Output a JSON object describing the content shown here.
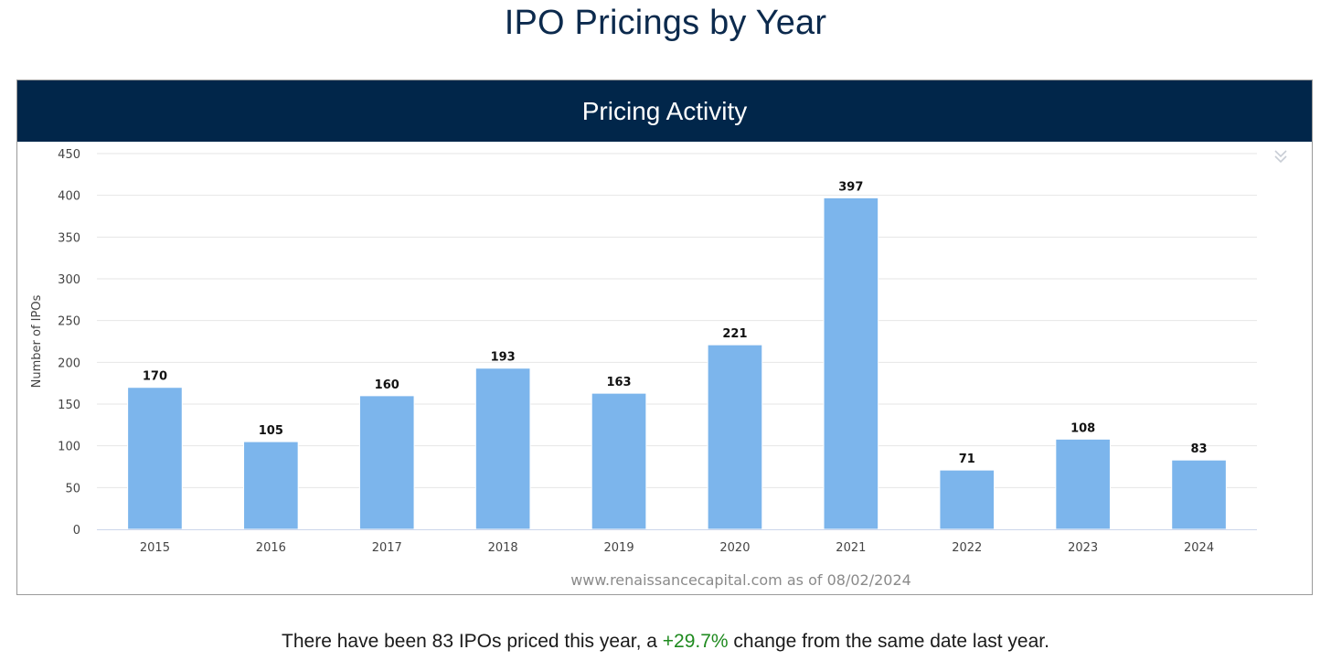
{
  "page": {
    "title": "IPO Pricings by Year"
  },
  "panel": {
    "header_title": "Pricing Activity",
    "source_text": "www.renaissancecapital.com as of 08/02/2024",
    "menu_icon": "double-chevron-down-icon"
  },
  "chart_data": {
    "type": "bar",
    "title": "Pricing Activity",
    "xlabel": "",
    "ylabel": "Number of IPOs",
    "categories": [
      "2015",
      "2016",
      "2017",
      "2018",
      "2019",
      "2020",
      "2021",
      "2022",
      "2023",
      "2024"
    ],
    "values": [
      170,
      105,
      160,
      193,
      163,
      221,
      397,
      71,
      108,
      83
    ],
    "ylim": [
      0,
      450
    ],
    "yticks": [
      0,
      50,
      100,
      150,
      200,
      250,
      300,
      350,
      400,
      450
    ],
    "grid": true,
    "bar_color": "#7cb5ec",
    "data_labels": true
  },
  "footer": {
    "prefix": "There have been 83 IPOs priced this year, a ",
    "change": "+29.7%",
    "suffix": " change from the same date last year.",
    "change_color": "#1f8a1f"
  }
}
